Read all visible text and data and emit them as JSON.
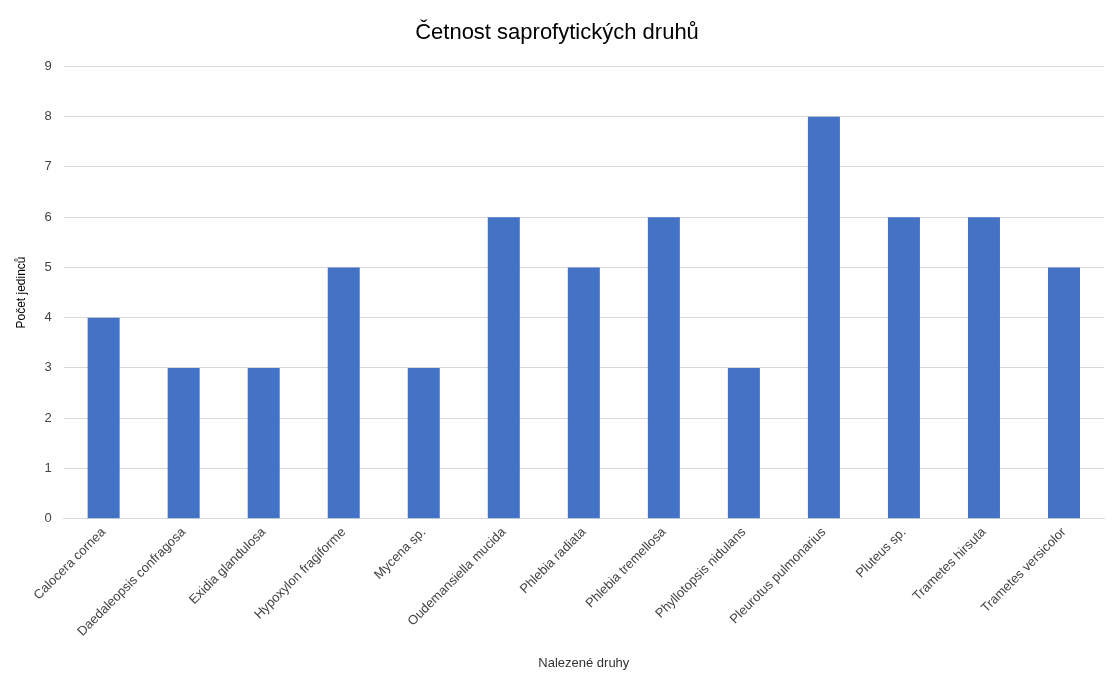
{
  "chart_data": {
    "type": "bar",
    "title": "Četnost saprofytických druhů",
    "xlabel": "Nalezené druhy",
    "ylabel": "Počet jedinců",
    "categories": [
      "Calocera cornea",
      "Daedaleopsis confragosa",
      "Exidia glandulosa",
      "Hypoxylon fragiforme",
      "Mycena sp.",
      "Oudemansiella mucida",
      "Phlebia radiata",
      "Phlebia tremellosa",
      "Phyllotopsis nidulans",
      "Pleurotus pulmonarius",
      "Pluteus sp.",
      "Trametes hirsuta",
      "Trametes versicolor"
    ],
    "values": [
      4,
      3,
      3,
      5,
      3,
      6,
      5,
      6,
      3,
      8,
      6,
      6,
      5
    ],
    "color": "#4472c4",
    "ylim": [
      0,
      9
    ],
    "yticks": [
      0,
      1,
      2,
      3,
      4,
      5,
      6,
      7,
      8,
      9
    ],
    "grid": "y",
    "legend": false
  }
}
